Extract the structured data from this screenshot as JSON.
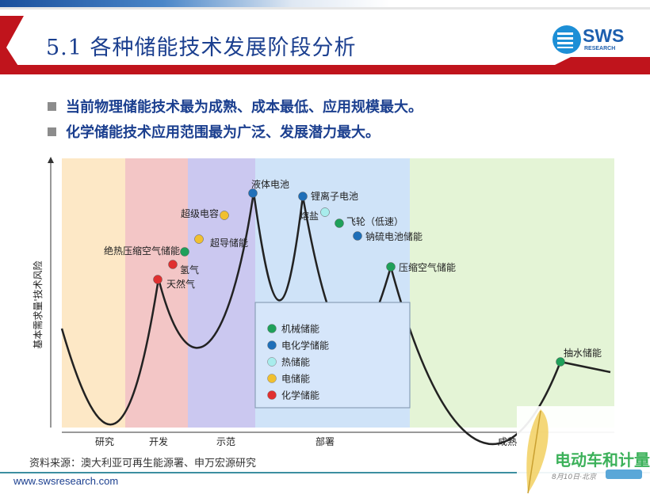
{
  "header": {
    "title": "5.1 各种储能技术发展阶段分析",
    "logo_text": "SWS",
    "logo_sub": "RESEARCH",
    "accent": "#c0141c",
    "title_color": "#1b3f8f"
  },
  "bullets": [
    "当前物理储能技术最为成熟、成本最低、应用规模最大。",
    "化学储能技术应用范围最为广泛、发展潜力最大。"
  ],
  "diagram": {
    "y_label": "基本需求量'技术风险",
    "stages": [
      {
        "label": "研究",
        "color": "#fde8c6"
      },
      {
        "label": "开发",
        "color": "#f3c6c6"
      },
      {
        "label": "示范",
        "color": "#cbc8f0"
      },
      {
        "label": "部署",
        "color": "#cfe3f8"
      },
      {
        "label": "成熟",
        "color": "#e4f4d6"
      }
    ],
    "categories": [
      {
        "name": "机械储能",
        "color": "#1fa05a"
      },
      {
        "name": "电化学储能",
        "color": "#1f6fb8"
      },
      {
        "name": "热储能",
        "color": "#a8ecec"
      },
      {
        "name": "电储能",
        "color": "#f0c030"
      },
      {
        "name": "化学储能",
        "color": "#e03030"
      }
    ],
    "technologies": [
      {
        "name": "天然气",
        "category": 4
      },
      {
        "name": "氢气",
        "category": 4
      },
      {
        "name": "绝热压缩空气储能",
        "category": 0
      },
      {
        "name": "超导储能",
        "category": 3
      },
      {
        "name": "超级电容",
        "category": 3
      },
      {
        "name": "液体电池",
        "category": 1
      },
      {
        "name": "锂离子电池",
        "category": 1
      },
      {
        "name": "熔盐",
        "category": 2
      },
      {
        "name": "飞轮（低速）",
        "category": 0
      },
      {
        "name": "钠硫电池储能",
        "category": 1
      },
      {
        "name": "压缩空气储能",
        "category": 0
      },
      {
        "name": "抽水储能",
        "category": 0
      }
    ]
  },
  "footer": {
    "source": "资料来源：澳大利亚可再生能源署、申万宏源研究",
    "url": "www.swsresearch.com"
  },
  "watermark": {
    "title": "电动车和计量",
    "sub": "8月10日·北京"
  }
}
